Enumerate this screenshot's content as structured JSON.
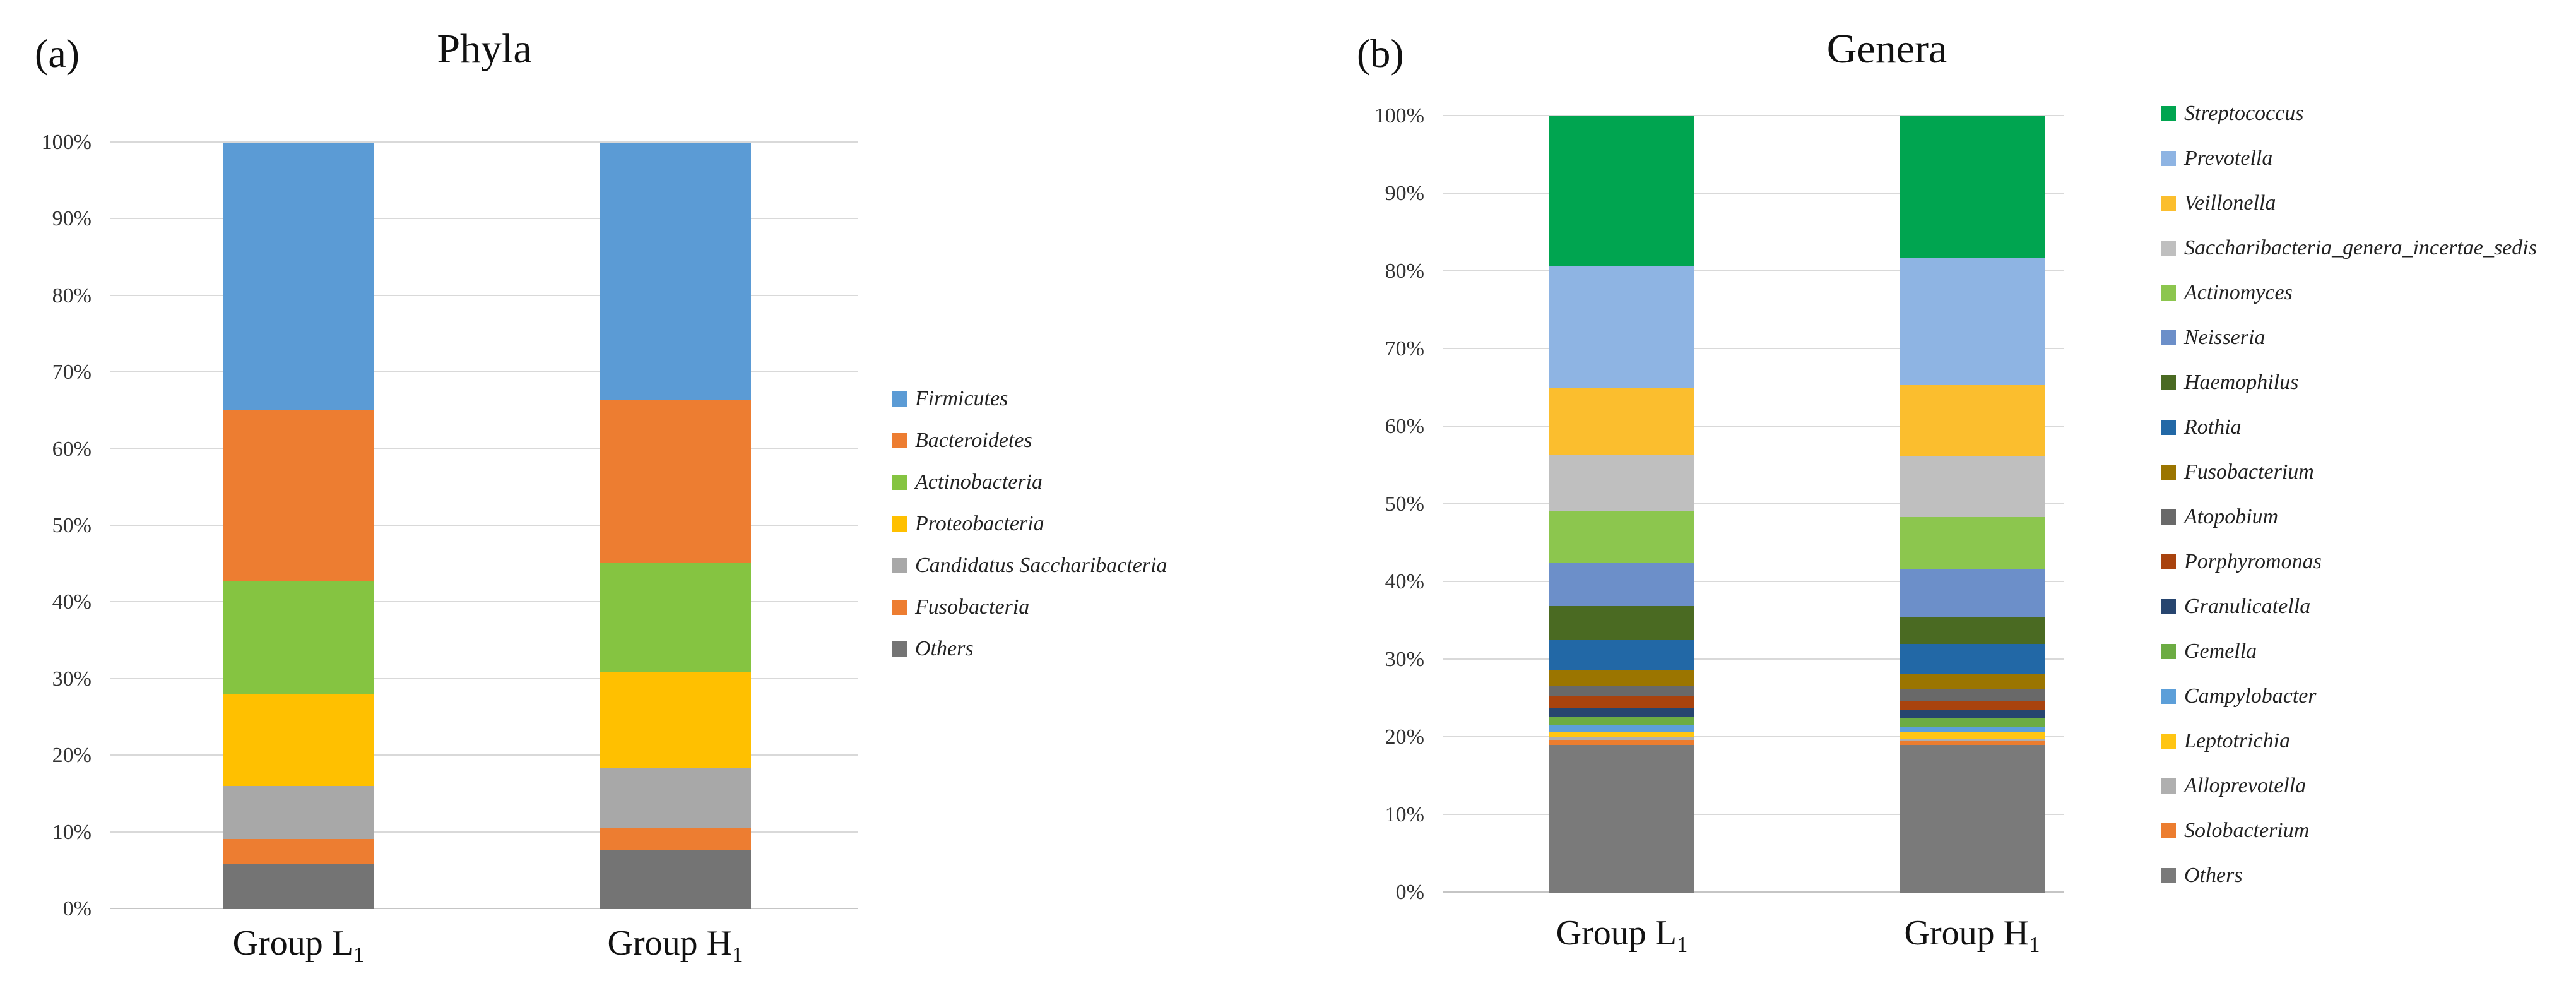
{
  "figure": {
    "background": "#FFFFFF",
    "gridline_color": "#D9D9D9"
  },
  "chart_data": [
    {
      "type": "bar",
      "stacked": true,
      "panel_label": "(a)",
      "title": "Phyla",
      "categories": [
        "Group L1",
        "Group H1"
      ],
      "category_labels": [
        {
          "main": "Group L",
          "sub": "1"
        },
        {
          "main": "Group H",
          "sub": "1"
        }
      ],
      "ylim": [
        0,
        100
      ],
      "y_tick_labels": [
        "0%",
        "10%",
        "20%",
        "30%",
        "40%",
        "50%",
        "60%",
        "70%",
        "80%",
        "90%",
        "100%"
      ],
      "grid": true,
      "legend_position": "right",
      "series": [
        {
          "name": "Firmicutes",
          "color": "#5B9BD5",
          "values": [
            34.9,
            33.5
          ]
        },
        {
          "name": "Bacteroidetes",
          "color": "#ED7D31",
          "values": [
            22.3,
            21.4
          ]
        },
        {
          "name": "Actinobacteria",
          "color": "#85C441",
          "values": [
            14.8,
            14.1
          ]
        },
        {
          "name": "Proteobacteria",
          "color": "#FFC000",
          "values": [
            11.9,
            12.6
          ]
        },
        {
          "name": "Candidatus Saccharibacteria",
          "color": "#A8A8A8",
          "values": [
            7.0,
            7.9
          ]
        },
        {
          "name": "Fusobacteria",
          "color": "#ED7D31",
          "values": [
            3.2,
            2.8
          ]
        },
        {
          "name": "Others",
          "color": "#747474",
          "values": [
            5.9,
            7.7
          ]
        }
      ]
    },
    {
      "type": "bar",
      "stacked": true,
      "panel_label": "(b)",
      "title": "Genera",
      "categories": [
        "Group L1",
        "Group H1"
      ],
      "category_labels": [
        {
          "main": "Group L",
          "sub": "1"
        },
        {
          "main": "Group H",
          "sub": "1"
        }
      ],
      "ylim": [
        0,
        100
      ],
      "y_tick_labels": [
        "0%",
        "10%",
        "20%",
        "30%",
        "40%",
        "50%",
        "60%",
        "70%",
        "80%",
        "90%",
        "100%"
      ],
      "grid": true,
      "legend_position": "right",
      "series": [
        {
          "name": "Streptococcus",
          "color": "#00A550",
          "values": [
            19.3,
            18.2
          ]
        },
        {
          "name": "Prevotella",
          "color": "#8EB4E3",
          "values": [
            15.7,
            16.4
          ]
        },
        {
          "name": "Veillonella",
          "color": "#FBBE2E",
          "values": [
            8.6,
            9.2
          ]
        },
        {
          "name": "Saccharibacteria_genera_incertae_sedis",
          "color": "#BFBFBF",
          "values": [
            7.3,
            7.8
          ]
        },
        {
          "name": "Actinomyces",
          "color": "#8CC64E",
          "values": [
            6.7,
            6.7
          ]
        },
        {
          "name": "Neisseria",
          "color": "#6C8FC9",
          "values": [
            5.5,
            6.2
          ]
        },
        {
          "name": "Haemophilus",
          "color": "#4A6A22",
          "values": [
            4.3,
            3.5
          ]
        },
        {
          "name": "Rothia",
          "color": "#2268A6",
          "values": [
            3.9,
            3.9
          ]
        },
        {
          "name": "Fusobacterium",
          "color": "#9B7500",
          "values": [
            2.0,
            1.9
          ]
        },
        {
          "name": "Atopobium",
          "color": "#696969",
          "values": [
            1.3,
            1.5
          ]
        },
        {
          "name": "Porphyromonas",
          "color": "#A9430E",
          "values": [
            1.6,
            1.2
          ]
        },
        {
          "name": "Granulicatella",
          "color": "#27456F",
          "values": [
            1.2,
            1.1
          ]
        },
        {
          "name": "Gemella",
          "color": "#6CAC43",
          "values": [
            1.1,
            1.0
          ]
        },
        {
          "name": "Campylobacter",
          "color": "#5C9FD9",
          "values": [
            0.8,
            0.7
          ]
        },
        {
          "name": "Leptotrichia",
          "color": "#FFC513",
          "values": [
            0.7,
            0.9
          ]
        },
        {
          "name": "Alloprevotella",
          "color": "#AFAFAF",
          "values": [
            0.3,
            0.2
          ]
        },
        {
          "name": "Solobacterium",
          "color": "#EC7D2F",
          "values": [
            0.7,
            0.6
          ]
        },
        {
          "name": "Others",
          "color": "#7A7A7A",
          "values": [
            19.0,
            19.0
          ]
        }
      ]
    }
  ]
}
